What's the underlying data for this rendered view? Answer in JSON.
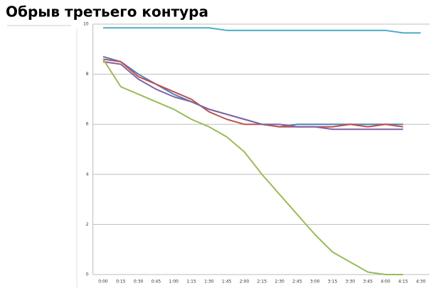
{
  "chart_data": {
    "type": "line",
    "title": "Обрыв третьего контура",
    "categories": [
      "0:00",
      "0:15",
      "0:30",
      "0:45",
      "1:00",
      "1:15",
      "1:30",
      "1:45",
      "2:00",
      "2:15",
      "2:30",
      "2:45",
      "3:00",
      "3:15",
      "3:30",
      "3:45",
      "4:00",
      "4:15",
      "4:30"
    ],
    "ylim": [
      0,
      10
    ],
    "yticks": [
      0,
      2,
      4,
      6,
      8,
      10
    ],
    "grid": true,
    "series": [
      {
        "color": "#4bacc6",
        "values": [
          9.85,
          9.85,
          9.85,
          9.85,
          9.85,
          9.85,
          9.85,
          9.75,
          9.75,
          9.75,
          9.75,
          9.75,
          9.75,
          9.75,
          9.75,
          9.75,
          9.75,
          9.65,
          9.65
        ]
      },
      {
        "color": "#4f81bd",
        "values": [
          8.7,
          8.5,
          8.0,
          7.6,
          7.2,
          6.9,
          6.6,
          6.4,
          6.2,
          6.0,
          5.9,
          6.0,
          6.0,
          6.0,
          6.0,
          6.0,
          6.0,
          6.0,
          null
        ]
      },
      {
        "color": "#c0504d",
        "values": [
          8.6,
          8.5,
          7.9,
          7.6,
          7.3,
          7.0,
          6.5,
          6.2,
          6.0,
          6.0,
          5.9,
          5.9,
          5.9,
          5.9,
          6.0,
          5.9,
          6.0,
          5.9,
          null
        ]
      },
      {
        "color": "#8064a2",
        "values": [
          8.5,
          8.4,
          7.8,
          7.4,
          7.1,
          6.9,
          6.6,
          6.4,
          6.2,
          6.0,
          6.0,
          5.9,
          5.9,
          5.8,
          5.8,
          5.8,
          5.8,
          5.8,
          null
        ]
      },
      {
        "color": "#9bbb59",
        "values": [
          8.6,
          7.5,
          7.2,
          6.9,
          6.6,
          6.2,
          5.9,
          5.5,
          4.9,
          4.0,
          3.2,
          2.4,
          1.6,
          0.9,
          0.5,
          0.1,
          0.0,
          0.0,
          null
        ]
      }
    ]
  }
}
